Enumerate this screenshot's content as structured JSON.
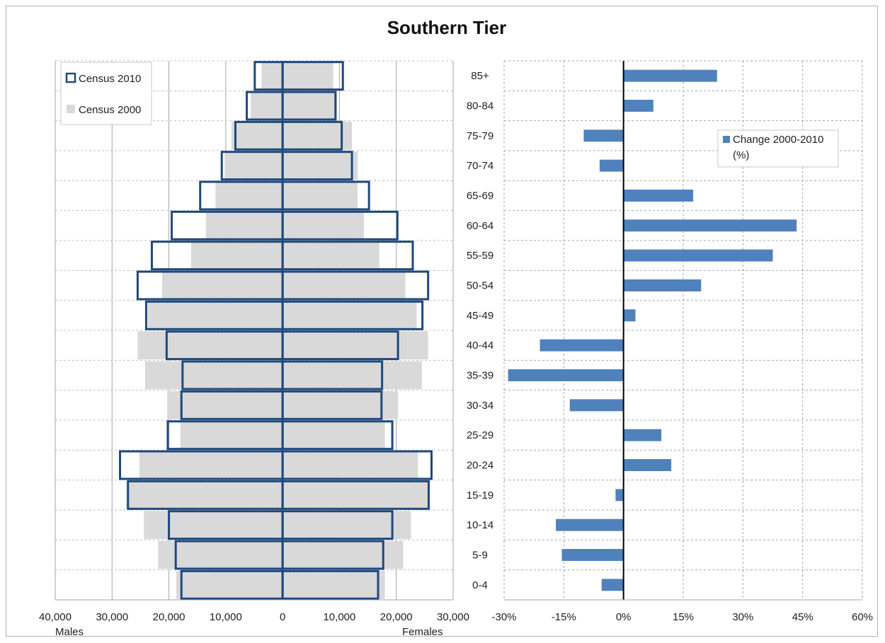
{
  "title": "Southern Tier",
  "chart_data": [
    {
      "type": "bar",
      "orientation": "horizontal",
      "subtype": "population-pyramid",
      "categories": [
        "0-4",
        "5-9",
        "10-14",
        "15-19",
        "20-24",
        "25-29",
        "30-34",
        "35-39",
        "40-44",
        "45-49",
        "50-54",
        "55-59",
        "60-64",
        "65-69",
        "70-74",
        "75-79",
        "80-84",
        "85+"
      ],
      "series": [
        {
          "name": "Census 2010",
          "males": [
            17800,
            18800,
            20000,
            27200,
            28600,
            20200,
            17800,
            17600,
            20400,
            24000,
            25500,
            23000,
            19500,
            14500,
            10700,
            8300,
            6300,
            4900
          ],
          "females": [
            16800,
            17700,
            19300,
            25700,
            26200,
            19300,
            17400,
            17500,
            20300,
            24600,
            25600,
            22900,
            20200,
            15200,
            12200,
            10400,
            9300,
            10600
          ]
        },
        {
          "name": "Census 2000",
          "males": [
            18700,
            21900,
            24400,
            27500,
            25200,
            18000,
            20300,
            24200,
            25500,
            23700,
            21200,
            16100,
            13500,
            11800,
            10200,
            9000,
            5600,
            3700
          ],
          "females": [
            18000,
            21200,
            22600,
            25800,
            23800,
            18000,
            20300,
            24500,
            25600,
            23600,
            21600,
            17000,
            14300,
            13200,
            13200,
            12200,
            9600,
            8900
          ]
        }
      ],
      "x_ticks": [
        "40,000",
        "30,000",
        "20,000",
        "10,000",
        "0",
        "10,000",
        "20,000",
        "30,000"
      ],
      "xlim": [
        -40000,
        30000
      ],
      "left_label": "Males",
      "right_label": "Females",
      "grid": "vertical",
      "legend": "top-left"
    },
    {
      "type": "bar",
      "orientation": "horizontal",
      "categories": [
        "0-4",
        "5-9",
        "10-14",
        "15-19",
        "20-24",
        "25-29",
        "30-34",
        "35-39",
        "40-44",
        "45-49",
        "50-54",
        "55-59",
        "60-64",
        "65-69",
        "70-74",
        "75-79",
        "80-84",
        "85+"
      ],
      "series": [
        {
          "name": "Change 2000-2010 (%)",
          "values": [
            -5.5,
            -15.5,
            -17,
            -2,
            12,
            9.5,
            -13.5,
            -29,
            -21,
            3,
            19.5,
            37.5,
            43.5,
            17.5,
            -6,
            -10,
            7.5,
            23.5
          ],
          "color": "#4f81bd"
        }
      ],
      "x_ticks": [
        "-30%",
        "-15%",
        "0%",
        "15%",
        "30%",
        "45%",
        "60%"
      ],
      "xlim": [
        -30,
        60
      ],
      "grid": "both-dashed",
      "legend": "top-right",
      "legend_lines": [
        "Change 2000-2010",
        "(%)"
      ]
    }
  ],
  "colors": {
    "census2010_outline": "#1f497d",
    "census2000_fill": "#d9d9d9",
    "change_bar": "#4f81bd",
    "grid": "#a6a6a6"
  }
}
